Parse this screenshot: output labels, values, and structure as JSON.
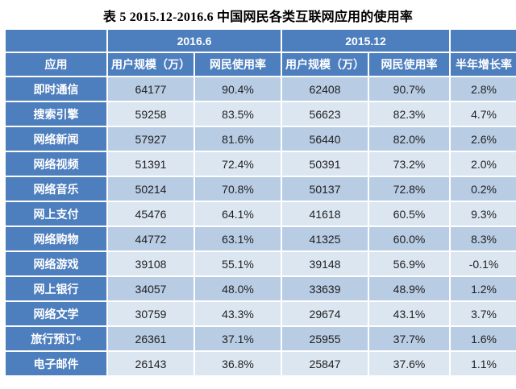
{
  "title": "表 5 2015.12-2016.6 中国网民各类互联网应用的使用率",
  "table": {
    "year_headers": [
      "2016.6",
      "2015.12"
    ],
    "col_headers": [
      "应用",
      "用户规模（万）",
      "网民使用率",
      "用户规模（万）",
      "网民使用率",
      "半年增长率"
    ],
    "rows": [
      {
        "app": "即时通信",
        "scale_2016": "64177",
        "rate_2016": "90.4%",
        "scale_2015": "62408",
        "rate_2015": "90.7%",
        "growth": "2.8%"
      },
      {
        "app": "搜索引擎",
        "scale_2016": "59258",
        "rate_2016": "83.5%",
        "scale_2015": "56623",
        "rate_2015": "82.3%",
        "growth": "4.7%"
      },
      {
        "app": "网络新闻",
        "scale_2016": "57927",
        "rate_2016": "81.6%",
        "scale_2015": "56440",
        "rate_2015": "82.0%",
        "growth": "2.6%"
      },
      {
        "app": "网络视频",
        "scale_2016": "51391",
        "rate_2016": "72.4%",
        "scale_2015": "50391",
        "rate_2015": "73.2%",
        "growth": "2.0%"
      },
      {
        "app": "网络音乐",
        "scale_2016": "50214",
        "rate_2016": "70.8%",
        "scale_2015": "50137",
        "rate_2015": "72.8%",
        "growth": "0.2%"
      },
      {
        "app": "网上支付",
        "scale_2016": "45476",
        "rate_2016": "64.1%",
        "scale_2015": "41618",
        "rate_2015": "60.5%",
        "growth": "9.3%"
      },
      {
        "app": "网络购物",
        "scale_2016": "44772",
        "rate_2016": "63.1%",
        "scale_2015": "41325",
        "rate_2015": "60.0%",
        "growth": "8.3%"
      },
      {
        "app": "网络游戏",
        "scale_2016": "39108",
        "rate_2016": "55.1%",
        "scale_2015": "39148",
        "rate_2015": "56.9%",
        "growth": "-0.1%"
      },
      {
        "app": "网上银行",
        "scale_2016": "34057",
        "rate_2016": "48.0%",
        "scale_2015": "33639",
        "rate_2015": "48.9%",
        "growth": "1.2%"
      },
      {
        "app": "网络文学",
        "scale_2016": "30759",
        "rate_2016": "43.3%",
        "scale_2015": "29674",
        "rate_2015": "43.1%",
        "growth": "3.7%"
      },
      {
        "app": "旅行预订⁶",
        "scale_2016": "26361",
        "rate_2016": "37.1%",
        "scale_2015": "25955",
        "rate_2015": "37.7%",
        "growth": "1.6%"
      },
      {
        "app": "电子邮件",
        "scale_2016": "26143",
        "rate_2016": "36.8%",
        "scale_2015": "25847",
        "rate_2015": "37.6%",
        "growth": "1.1%"
      }
    ]
  },
  "colors": {
    "header_blue": "#4d7ebd",
    "row_medium": "#b8cce4",
    "row_light": "#dce6f1",
    "header_text": "#ffffff",
    "data_text": "#1f1f1f"
  }
}
